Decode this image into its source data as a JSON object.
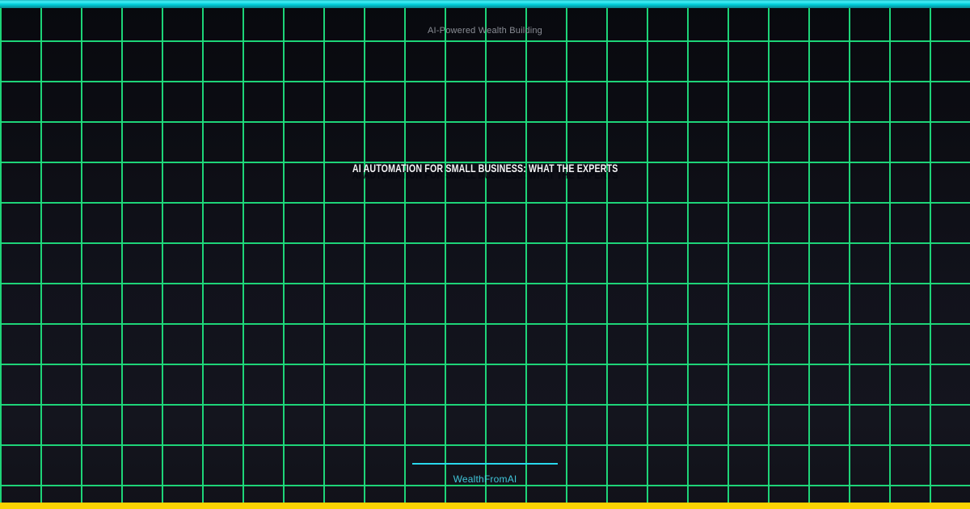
{
  "card": {
    "tagline": "AI-Powered Wealth Building",
    "title": "AI AUTOMATION FOR SMALL BUSINESS: WHAT THE EXPERTS",
    "brand": "WealthFromAI"
  },
  "colors": {
    "top_bar_cyan": "#2ee6f0",
    "bottom_bar_gold": "#fcd303",
    "grid_green": "#1ede7d",
    "background_dark": "#11121b",
    "tagline_gray": "#8b8e96",
    "title_white": "#f3f3f5",
    "title_shadow": "#060810",
    "divider_cyan": "#29d8ec",
    "brand_cyan": "#41c7db"
  }
}
